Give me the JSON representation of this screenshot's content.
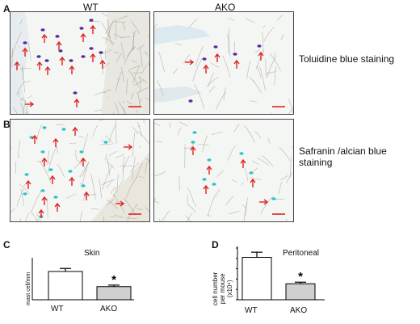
{
  "figure": {
    "panel_labels": {
      "a": "A",
      "b": "B",
      "c": "C",
      "d": "D"
    },
    "column_titles": {
      "wt": "WT",
      "ako": "AKO"
    },
    "row_titles": {
      "toluidine": "Toluidine blue staining",
      "safranin": "Safranin /alcian blue staining"
    }
  },
  "chart_data": [
    {
      "type": "bar",
      "title": "Skin",
      "ylabel": "mast cell/mm",
      "categories": [
        "WT",
        "AKO"
      ],
      "values": [
        28,
        13
      ],
      "error": [
        3,
        1.5
      ],
      "ylim": [
        0,
        40
      ],
      "colors": [
        "#ffffff",
        "#d0d0d0"
      ],
      "annotation": "*"
    },
    {
      "type": "bar",
      "title": "Peritoneal",
      "ylabel": "cell number per mouse (x10⁴)",
      "ylabel_lines": [
        "cell number",
        "per mouse",
        "(x10⁴)"
      ],
      "categories": [
        "WT",
        "AKO"
      ],
      "values": [
        4.1,
        1.55
      ],
      "error": [
        0.5,
        0.15
      ],
      "ylim": [
        0,
        5
      ],
      "colors": [
        "#ffffff",
        "#d0d0d0"
      ],
      "annotation": "*"
    }
  ],
  "colors": {
    "arrow": "#e02020",
    "toluidine_cell": "#5b2a9e",
    "alcian_cell": "#2ec4c8",
    "fiber": "#8b8270",
    "scalebar": "#e02020"
  }
}
